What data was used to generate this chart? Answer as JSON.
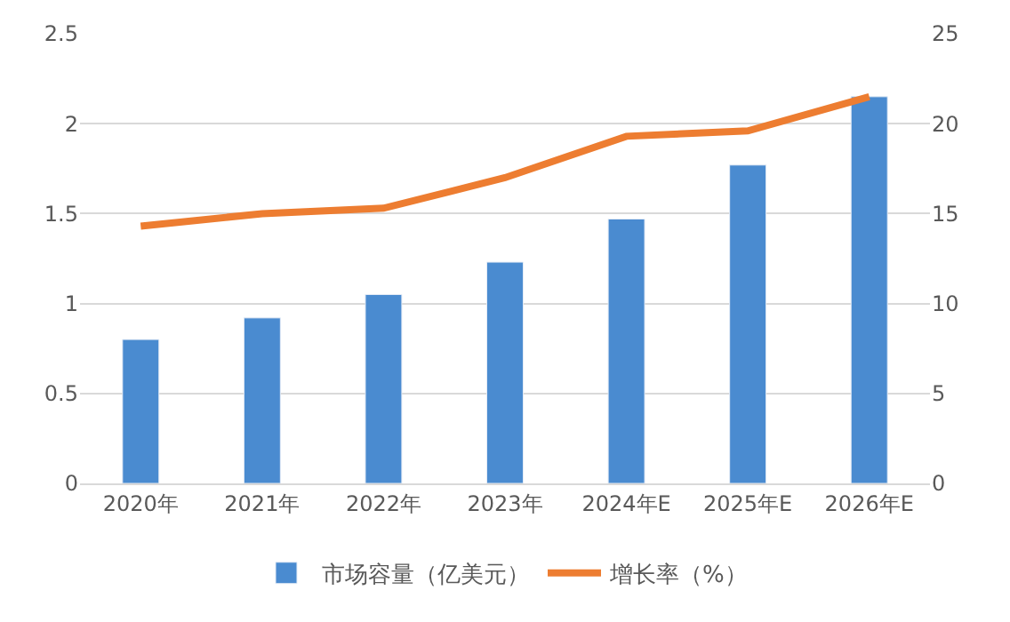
{
  "chart_data": {
    "type": "bar",
    "categories": [
      "2020年",
      "2021年",
      "2022年",
      "2023年",
      "2024年E",
      "2025年E",
      "2026年E"
    ],
    "series": [
      {
        "name": "市场容量（亿美元）",
        "color": "#4a8bd0",
        "values": [
          0.8,
          0.92,
          1.05,
          1.23,
          1.47,
          1.77,
          2.15
        ]
      },
      {
        "name": "增长率（%）",
        "color": "#ed7d31",
        "type": "line",
        "axis": "y2",
        "values": [
          14.3,
          15.0,
          15.3,
          17.0,
          19.3,
          19.6,
          21.5
        ]
      }
    ],
    "ylim": [
      0,
      2.5
    ],
    "yticks": [
      0,
      0.5,
      1,
      1.5,
      2,
      2.5
    ],
    "y2lim": [
      0,
      25
    ],
    "y2ticks": [
      0,
      5,
      10,
      15,
      20,
      25
    ],
    "grid": "y",
    "legend": "bottom",
    "marker": "none",
    "line_style": "solid"
  }
}
